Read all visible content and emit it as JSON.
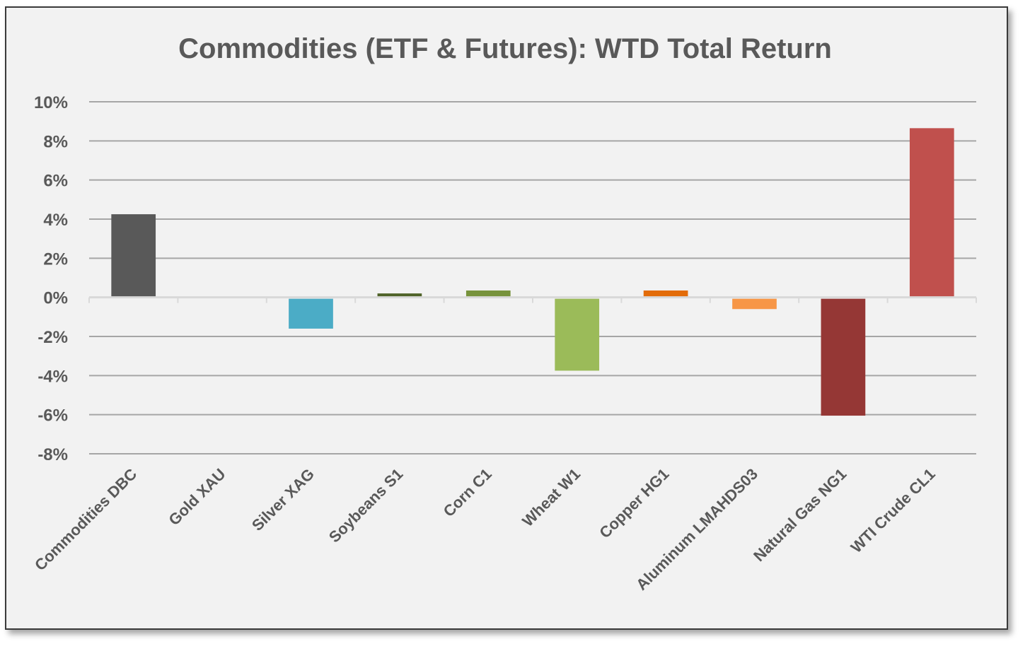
{
  "chart_data": {
    "type": "bar",
    "title": "Commodities (ETF & Futures): WTD Total Return",
    "xlabel": "",
    "ylabel": "",
    "ylim": [
      -8,
      10
    ],
    "yticks": [
      10,
      8,
      6,
      4,
      2,
      0,
      -2,
      -4,
      -6,
      -8
    ],
    "ytick_labels": [
      "10%",
      "8%",
      "6%",
      "4%",
      "2%",
      "0%",
      "-2%",
      "-4%",
      "-6%",
      "-8%"
    ],
    "grid": true,
    "categories": [
      "Commodities DBC",
      "Gold XAU",
      "Silver XAG",
      "Soybeans S1",
      "Corn C1",
      "Wheat W1",
      "Copper HG1",
      "Aluminum LMAHDS03",
      "Natural Gas NG1",
      "WTI Crude CL1"
    ],
    "values": [
      4.25,
      0.0,
      -1.6,
      0.2,
      0.35,
      -3.75,
      0.35,
      -0.6,
      -6.05,
      8.65
    ],
    "colors": [
      "#595959",
      "#4a8bb5",
      "#4bacc6",
      "#4f6228",
      "#77933c",
      "#9bbb59",
      "#e36c09",
      "#f79646",
      "#953735",
      "#c0504d"
    ]
  }
}
